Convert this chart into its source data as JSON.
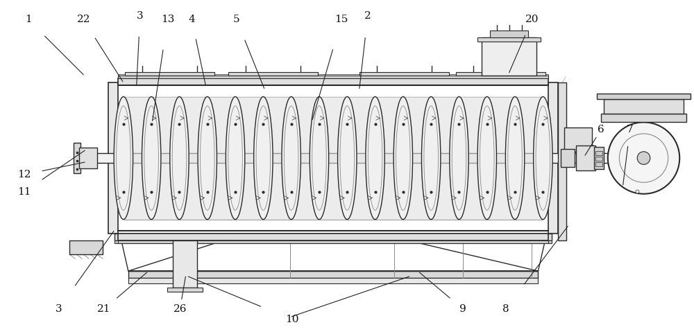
{
  "bg_color": "#ffffff",
  "line_color": "#2a2a2a",
  "light_gray": "#b0b0b0",
  "mid_gray": "#888888",
  "dark_gray": "#555555",
  "fig_width": 10.0,
  "fig_height": 4.82
}
